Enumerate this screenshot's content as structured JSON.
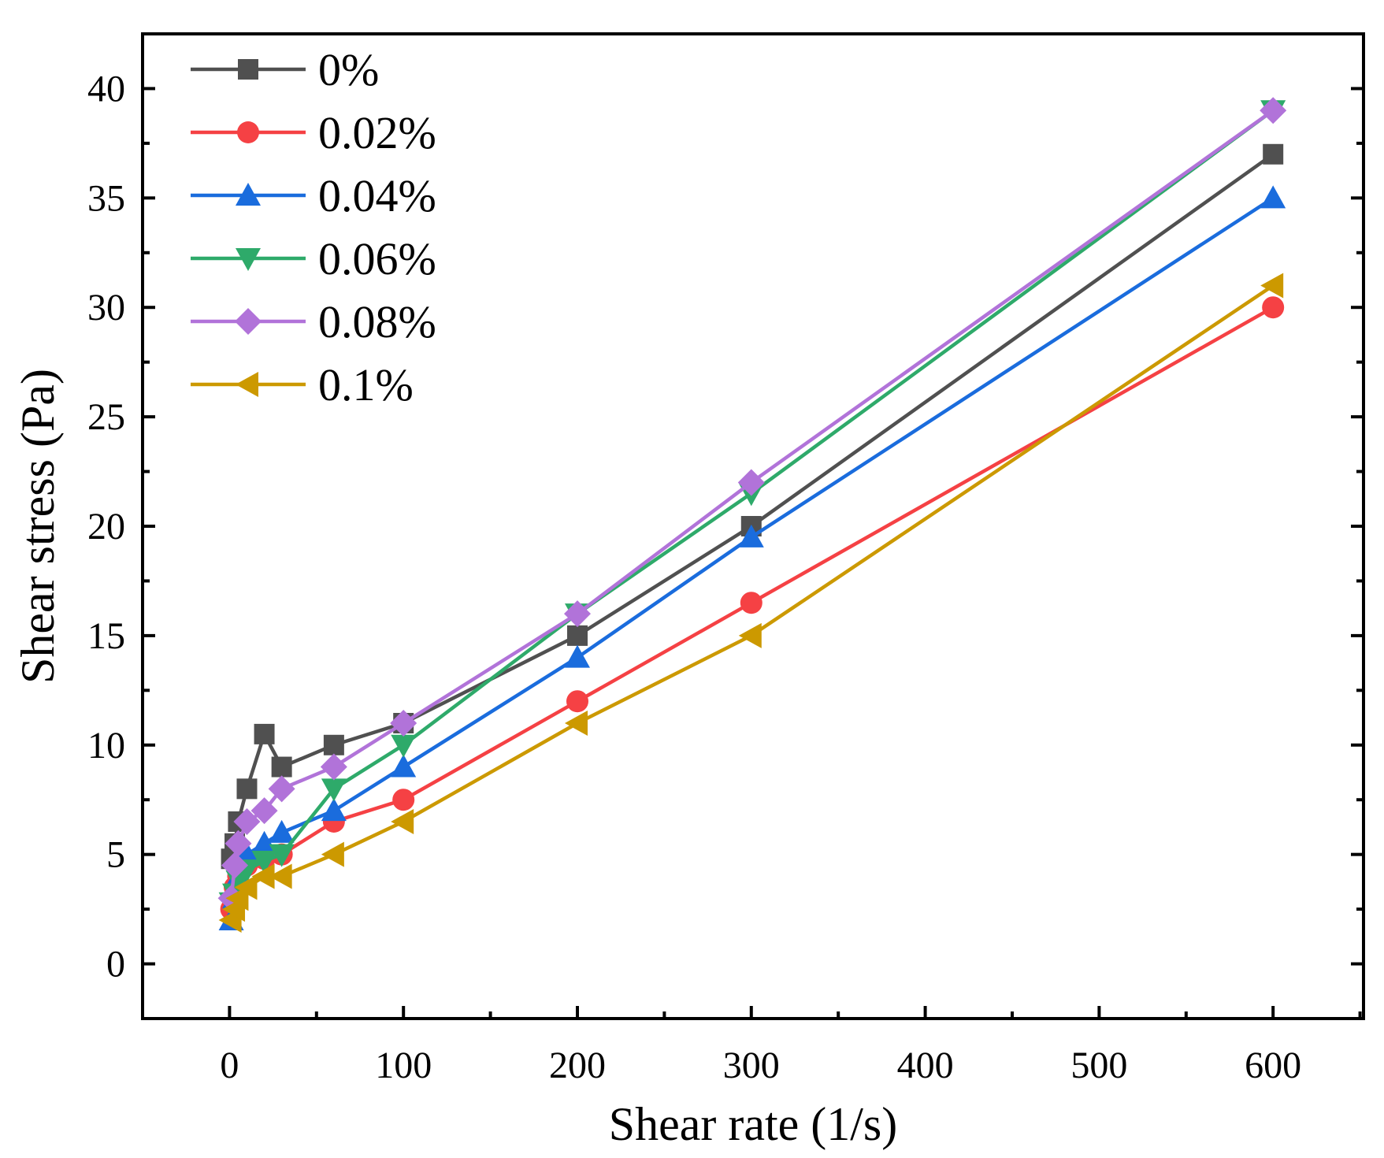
{
  "chart_data": {
    "type": "line",
    "xlabel": "Shear rate (1/s)",
    "ylabel": "Shear stress (Pa)",
    "xlim": [
      -50,
      652
    ],
    "ylim": [
      -2.5,
      42.5
    ],
    "xticks": [
      0,
      100,
      200,
      300,
      400,
      500,
      600
    ],
    "yticks": [
      0,
      5,
      10,
      15,
      20,
      25,
      30,
      35,
      40
    ],
    "grid": false,
    "legend_position": "top-left",
    "series": [
      {
        "name": "0%",
        "color": "#505050",
        "marker": "square",
        "x": [
          1,
          3,
          5,
          10,
          20,
          30,
          60,
          100,
          200,
          300,
          600
        ],
        "y": [
          4.8,
          5.5,
          6.5,
          8,
          10.5,
          9,
          10,
          11,
          15,
          20,
          37
        ]
      },
      {
        "name": "0.02%",
        "color": "#f54144",
        "marker": "circle",
        "x": [
          1,
          3,
          5,
          10,
          20,
          30,
          60,
          100,
          200,
          300,
          600
        ],
        "y": [
          2.5,
          3.5,
          4,
          4.5,
          4.8,
          5,
          6.5,
          7.5,
          12,
          16.5,
          30
        ]
      },
      {
        "name": "0.04%",
        "color": "#1a6cdd",
        "marker": "triangle-up",
        "x": [
          1,
          3,
          5,
          10,
          20,
          30,
          60,
          100,
          200,
          300,
          600
        ],
        "y": [
          2,
          3,
          4,
          5,
          5.5,
          6,
          7,
          9,
          14,
          19.5,
          35
        ]
      },
      {
        "name": "0.06%",
        "color": "#2eaa6a",
        "marker": "triangle-down",
        "x": [
          1,
          3,
          5,
          10,
          20,
          30,
          60,
          100,
          200,
          300,
          600
        ],
        "y": [
          2.8,
          3.2,
          3.8,
          4.3,
          4.7,
          5,
          8,
          10,
          16,
          21.5,
          39
        ]
      },
      {
        "name": "0.08%",
        "color": "#b173d9",
        "marker": "diamond",
        "x": [
          1,
          3,
          5,
          10,
          20,
          30,
          60,
          100,
          200,
          300,
          600
        ],
        "y": [
          3,
          4.5,
          5.5,
          6.5,
          7,
          8,
          9,
          11,
          16,
          22,
          39
        ]
      },
      {
        "name": "0.1%",
        "color": "#cc9900",
        "marker": "triangle-left",
        "x": [
          1,
          3,
          5,
          10,
          20,
          30,
          60,
          100,
          200,
          300,
          600
        ],
        "y": [
          2,
          2.5,
          3,
          3.5,
          4,
          4,
          5,
          6.5,
          11,
          15,
          31
        ]
      }
    ]
  }
}
